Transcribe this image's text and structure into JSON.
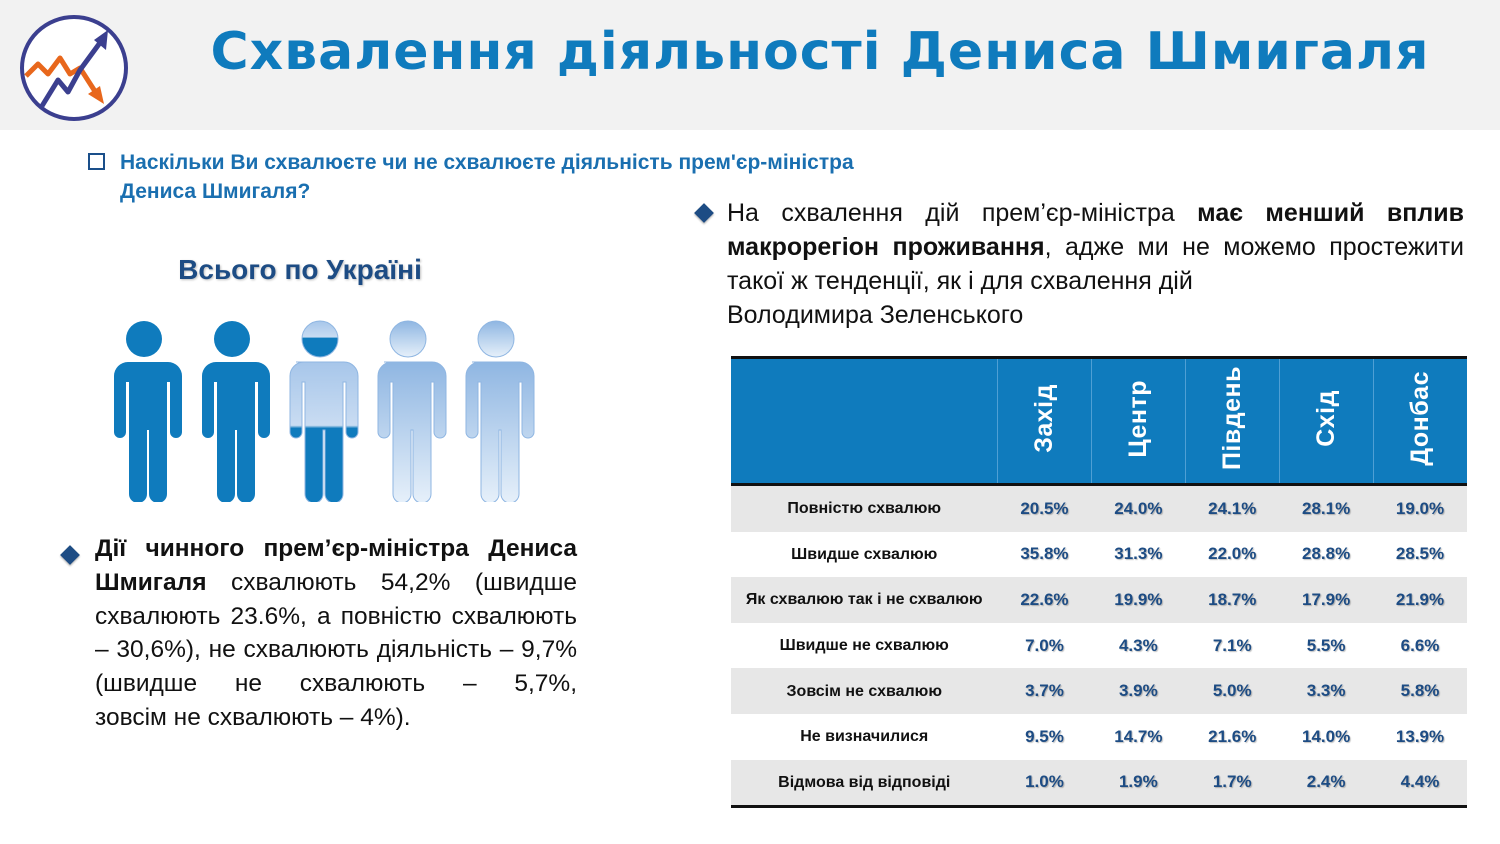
{
  "header": {
    "title": "Схвалення діяльності Дениса Шмигаля"
  },
  "question": {
    "text": "Наскільки Ви схвалюєте чи не схвалюєте діяльність прем'єр-міністра Дениса Шмигаля?"
  },
  "left": {
    "subtitle": "Всього по Україні",
    "text_bold": "Дії чинного прем’єр-міністра Дениса Шмигаля",
    "text_rest": " схвалюють 54,2% (швидше схвалюють 23.6%, а повністю схвалюють – 30,6%), не схвалюють діяльність – 9,7% (швидше не схвалюють – 5,7%, ",
    "text_last": "зовсім не схвалюють – 4%)."
  },
  "right": {
    "text_1": "На схвалення дій прем’єр-міністра ",
    "text_bold": "має менший вплив макрорегіон проживання",
    "text_2": ", адже ми не можемо простежити такої ж тенденції, як і для схвалення дій ",
    "text_3": "Володимира Зеленського"
  },
  "table": {
    "columns": [
      "Захід",
      "Центр",
      "Південь",
      "Схід",
      "Донбас"
    ],
    "rows": [
      {
        "label": "Повністю схвалюю",
        "values": [
          "20.5%",
          "24.0%",
          "24.1%",
          "28.1%",
          "19.0%"
        ]
      },
      {
        "label": "Швидше схвалюю",
        "values": [
          "35.8%",
          "31.3%",
          "22.0%",
          "28.8%",
          "28.5%"
        ]
      },
      {
        "label": "Як схвалюю так і не схвалюю",
        "values": [
          "22.6%",
          "19.9%",
          "18.7%",
          "17.9%",
          "21.9%"
        ]
      },
      {
        "label": "Швидше не схвалюю",
        "values": [
          "7.0%",
          "4.3%",
          "7.1%",
          "5.5%",
          "6.6%"
        ]
      },
      {
        "label": "Зовсім не схвалюю",
        "values": [
          "3.7%",
          "3.9%",
          "5.0%",
          "3.3%",
          "5.8%"
        ]
      },
      {
        "label": "Не визначилися",
        "values": [
          "9.5%",
          "14.7%",
          "21.6%",
          "14.0%",
          "13.9%"
        ]
      },
      {
        "label": "Відмова від відповіді",
        "values": [
          "1.0%",
          "1.9%",
          "1.7%",
          "2.4%",
          "4.4%"
        ]
      }
    ]
  },
  "colors": {
    "title": "#0f7bbd",
    "accent": "#1d4c84",
    "table_header": "#0f7bbd",
    "person_dark": "#0f7bbd",
    "person_light": "#a9c9ea"
  },
  "icons": {
    "logo": "growth-chart-logo-icon",
    "bullet": "diamond-bullet-icon",
    "people": "person-icon"
  }
}
